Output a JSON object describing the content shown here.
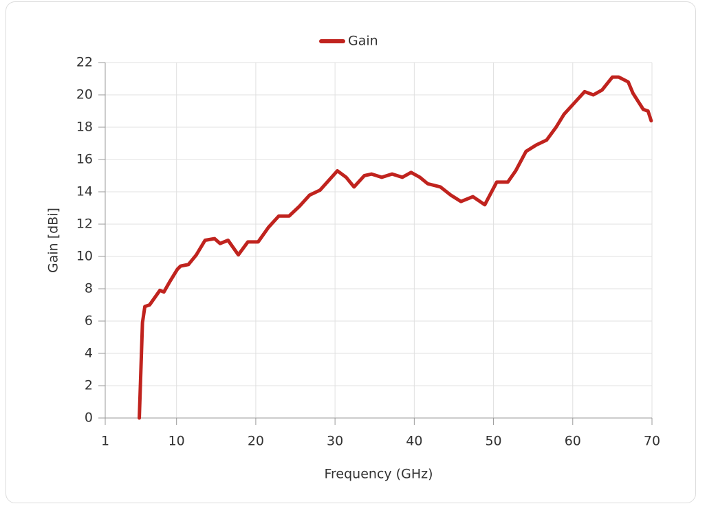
{
  "chart_data": {
    "type": "line",
    "xlabel": "Frequency (GHz)",
    "ylabel": "Gain [dBi]",
    "series": [
      {
        "name": "Gain",
        "color": "#c0231e",
        "x": [
          5.3,
          5.7,
          6.0,
          6.6,
          7.9,
          8.4,
          9.1,
          10.1,
          10.5,
          11.5,
          12.5,
          13.6,
          14.8,
          15.5,
          16.5,
          17.8,
          19.0,
          20.3,
          21.6,
          22.9,
          24.2,
          25.5,
          26.8,
          28.1,
          29.2,
          30.3,
          31.4,
          32.4,
          33.7,
          34.6,
          35.9,
          37.2,
          38.5,
          39.6,
          40.7,
          41.7,
          43.3,
          44.6,
          45.9,
          47.4,
          48.9,
          50.4,
          51.8,
          52.8,
          54.1,
          55.4,
          56.7,
          57.9,
          58.9,
          60.2,
          61.5,
          62.6,
          63.7,
          65.0,
          65.8,
          67.0,
          67.6,
          68.9,
          69.5,
          69.9
        ],
        "values": [
          0,
          5.9,
          6.9,
          7.0,
          7.9,
          7.8,
          8.4,
          9.2,
          9.4,
          9.5,
          10.1,
          11.0,
          11.1,
          10.8,
          11.0,
          10.1,
          10.9,
          10.9,
          11.8,
          12.5,
          12.5,
          13.1,
          13.8,
          14.1,
          14.7,
          15.3,
          14.9,
          14.3,
          15.0,
          15.1,
          14.9,
          15.1,
          14.9,
          15.2,
          14.9,
          14.5,
          14.3,
          13.8,
          13.4,
          13.7,
          13.2,
          14.6,
          14.6,
          15.3,
          16.5,
          16.9,
          17.2,
          18.0,
          18.8,
          19.5,
          20.2,
          20.0,
          20.3,
          21.1,
          21.1,
          20.8,
          20.1,
          19.1,
          19.0,
          18.4
        ]
      }
    ],
    "xlim": [
      1,
      70
    ],
    "xticks": [
      1,
      10,
      20,
      30,
      40,
      50,
      60,
      70
    ],
    "ylim": [
      0,
      22
    ],
    "yticks": [
      0,
      2,
      4,
      6,
      8,
      10,
      12,
      14,
      16,
      18,
      20,
      22
    ],
    "grid": true,
    "legend": "top"
  }
}
